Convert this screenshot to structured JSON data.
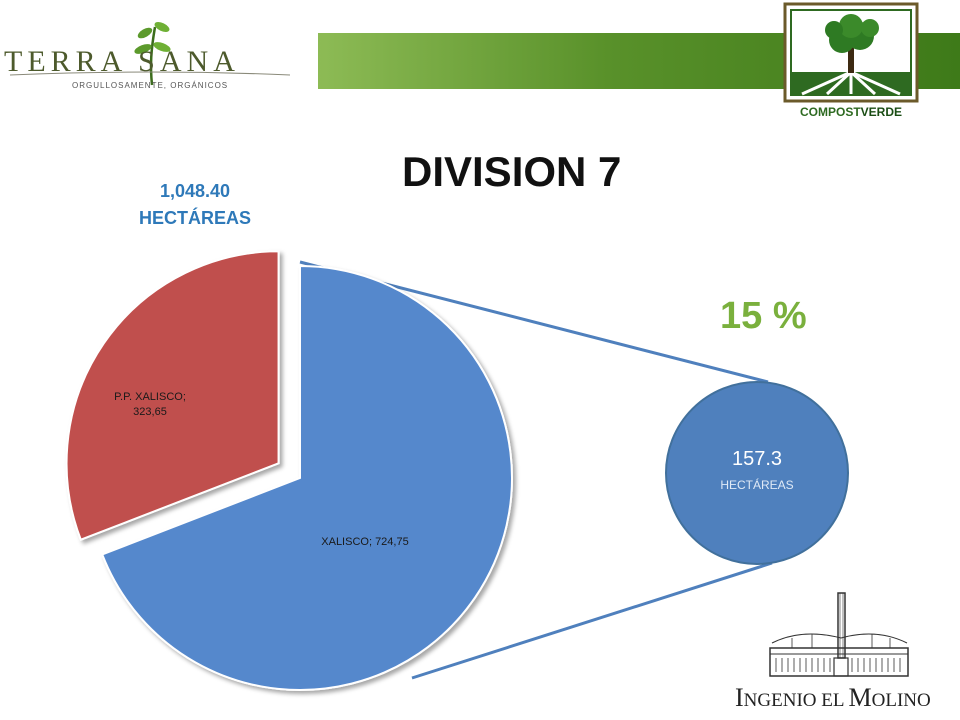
{
  "header": {
    "left_logo": {
      "name": "TERRA SANA",
      "tagline": "ORGULLOSAMENTE, ORGÁNICOS"
    },
    "right_logo": {
      "name_part1": "COMPOST",
      "name_part2": "VERDE"
    },
    "bar_color": "#59912a"
  },
  "title": "DIVISION 7",
  "total": {
    "value": "1,048.40",
    "unit": "HECTÁREAS"
  },
  "highlight": {
    "percent": "15 %",
    "value": "157.3",
    "unit": "HECTÁREAS"
  },
  "footer_logo": {
    "name_initial1": "I",
    "name_rest1": "NGENIO EL ",
    "name_initial2": "M",
    "name_rest2": "OLINO"
  },
  "chart_data": {
    "type": "pie",
    "slices": [
      {
        "label": "XALISCO; 724,75",
        "name": "XALISCO",
        "value": 724.75,
        "color": "#5588cc"
      },
      {
        "label": "P.P. XALISCO; 323,65",
        "name": "P.P. XALISCO",
        "value": 323.65,
        "color": "#c0504d",
        "exploded": true
      }
    ],
    "callout": {
      "value": 157.3,
      "percent": 15,
      "color": "#4f80bd"
    }
  }
}
